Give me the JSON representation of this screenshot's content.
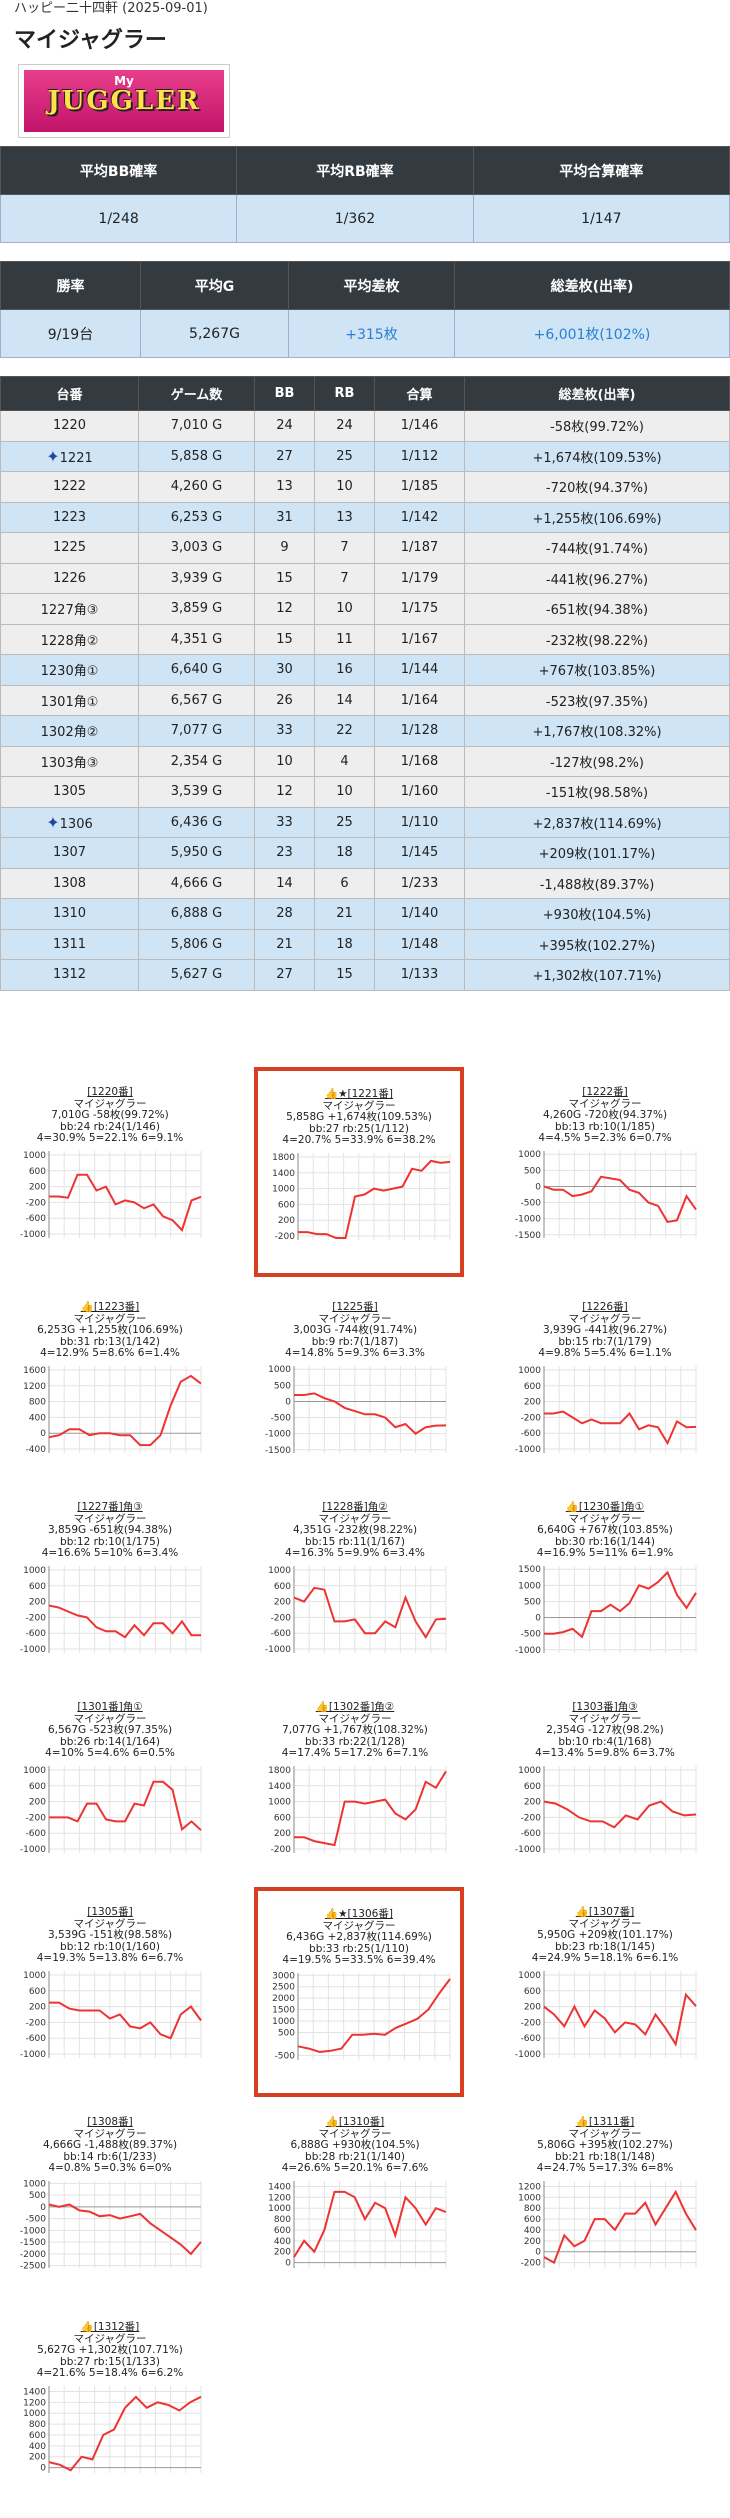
{
  "header": {
    "meta": "ハッピー二十四軒 (2025-09-01)",
    "title": "マイジャグラー",
    "logo_text": "JUGGLER",
    "logo_sub": "My"
  },
  "summary1": {
    "headers": [
      "平均BB確率",
      "平均RB確率",
      "平均合算確率"
    ],
    "values": [
      "1/248",
      "1/362",
      "1/147"
    ]
  },
  "summary2": {
    "headers": [
      "勝率",
      "平均G",
      "平均差枚",
      "総差枚(出率)"
    ],
    "values": [
      "9/19台",
      "5,267G",
      "+315枚",
      "+6,001枚(102%)"
    ]
  },
  "machines_table": {
    "headers": [
      "台番",
      "ゲーム数",
      "BB",
      "RB",
      "合算",
      "総差枚(出率)"
    ],
    "rows": [
      {
        "no": "1220",
        "g": "7,010 G",
        "bb": "24",
        "rb": "24",
        "total": "1/146",
        "diff": "-58枚(99.72%)",
        "win": false,
        "star": false
      },
      {
        "no": "1221",
        "g": "5,858 G",
        "bb": "27",
        "rb": "25",
        "total": "1/112",
        "diff": "+1,674枚(109.53%)",
        "win": true,
        "star": true
      },
      {
        "no": "1222",
        "g": "4,260 G",
        "bb": "13",
        "rb": "10",
        "total": "1/185",
        "diff": "-720枚(94.37%)",
        "win": false,
        "star": false
      },
      {
        "no": "1223",
        "g": "6,253 G",
        "bb": "31",
        "rb": "13",
        "total": "1/142",
        "diff": "+1,255枚(106.69%)",
        "win": true,
        "star": false
      },
      {
        "no": "1225",
        "g": "3,003 G",
        "bb": "9",
        "rb": "7",
        "total": "1/187",
        "diff": "-744枚(91.74%)",
        "win": false,
        "star": false
      },
      {
        "no": "1226",
        "g": "3,939 G",
        "bb": "15",
        "rb": "7",
        "total": "1/179",
        "diff": "-441枚(96.27%)",
        "win": false,
        "star": false
      },
      {
        "no": "1227角③",
        "g": "3,859 G",
        "bb": "12",
        "rb": "10",
        "total": "1/175",
        "diff": "-651枚(94.38%)",
        "win": false,
        "star": false
      },
      {
        "no": "1228角②",
        "g": "4,351 G",
        "bb": "15",
        "rb": "11",
        "total": "1/167",
        "diff": "-232枚(98.22%)",
        "win": false,
        "star": false
      },
      {
        "no": "1230角①",
        "g": "6,640 G",
        "bb": "30",
        "rb": "16",
        "total": "1/144",
        "diff": "+767枚(103.85%)",
        "win": true,
        "star": false
      },
      {
        "no": "1301角①",
        "g": "6,567 G",
        "bb": "26",
        "rb": "14",
        "total": "1/164",
        "diff": "-523枚(97.35%)",
        "win": false,
        "star": false
      },
      {
        "no": "1302角②",
        "g": "7,077 G",
        "bb": "33",
        "rb": "22",
        "total": "1/128",
        "diff": "+1,767枚(108.32%)",
        "win": true,
        "star": false
      },
      {
        "no": "1303角③",
        "g": "2,354 G",
        "bb": "10",
        "rb": "4",
        "total": "1/168",
        "diff": "-127枚(98.2%)",
        "win": false,
        "star": false
      },
      {
        "no": "1305",
        "g": "3,539 G",
        "bb": "12",
        "rb": "10",
        "total": "1/160",
        "diff": "-151枚(98.58%)",
        "win": false,
        "star": false
      },
      {
        "no": "1306",
        "g": "6,436 G",
        "bb": "33",
        "rb": "25",
        "total": "1/110",
        "diff": "+2,837枚(114.69%)",
        "win": true,
        "star": true
      },
      {
        "no": "1307",
        "g": "5,950 G",
        "bb": "23",
        "rb": "18",
        "total": "1/145",
        "diff": "+209枚(101.17%)",
        "win": true,
        "star": false
      },
      {
        "no": "1308",
        "g": "4,666 G",
        "bb": "14",
        "rb": "6",
        "total": "1/233",
        "diff": "-1,488枚(89.37%)",
        "win": false,
        "star": false
      },
      {
        "no": "1310",
        "g": "6,888 G",
        "bb": "28",
        "rb": "21",
        "total": "1/140",
        "diff": "+930枚(104.5%)",
        "win": true,
        "star": false
      },
      {
        "no": "1311",
        "g": "5,806 G",
        "bb": "21",
        "rb": "18",
        "total": "1/148",
        "diff": "+395枚(102.27%)",
        "win": true,
        "star": false
      },
      {
        "no": "1312",
        "g": "5,627 G",
        "bb": "27",
        "rb": "15",
        "total": "1/133",
        "diff": "+1,302枚(107.71%)",
        "win": true,
        "star": false
      }
    ]
  },
  "cards": [
    {
      "title": "[1220番]",
      "machine": "マイジャグラー",
      "l1": "7,010G -58枚(99.72%)",
      "l2": "bb:24 rb:24(1/146)",
      "l3": "4=30.9% 5=22.1% 6=9.1%",
      "highlight": false,
      "yticks": [
        "1000",
        "600",
        "200",
        "-200",
        "-600",
        "-1000"
      ],
      "ymin": -1100,
      "ymax": 1100
    },
    {
      "title": "👍★[1221番]",
      "machine": "マイジャグラー",
      "l1": "5,858G +1,674枚(109.53%)",
      "l2": "bb:27 rb:25(1/112)",
      "l3": "4=20.7% 5=33.9% 6=38.2%",
      "highlight": true,
      "yticks": [
        "1800",
        "1400",
        "1000",
        "600",
        "200",
        "-200"
      ],
      "ymin": -300,
      "ymax": 1900
    },
    {
      "title": "[1222番]",
      "machine": "マイジャグラー",
      "l1": "4,260G -720枚(94.37%)",
      "l2": "bb:13 rb:10(1/185)",
      "l3": "4=4.5% 5=2.3% 6=0.7%",
      "highlight": false,
      "yticks": [
        "1000",
        "500",
        "0",
        "-500",
        "-1000",
        "-1500"
      ],
      "ymin": -1600,
      "ymax": 1100
    },
    {
      "title": "👍[1223番]",
      "machine": "マイジャグラー",
      "l1": "6,253G +1,255枚(106.69%)",
      "l2": "bb:31 rb:13(1/142)",
      "l3": "4=12.9% 5=8.6% 6=1.4%",
      "highlight": false,
      "yticks": [
        "1600",
        "1200",
        "800",
        "400",
        "0",
        "-400"
      ],
      "ymin": -500,
      "ymax": 1700
    },
    {
      "title": "[1225番]",
      "machine": "マイジャグラー",
      "l1": "3,003G -744枚(91.74%)",
      "l2": "bb:9 rb:7(1/187)",
      "l3": "4=14.8% 5=9.3% 6=3.3%",
      "highlight": false,
      "yticks": [
        "1000",
        "500",
        "0",
        "-500",
        "-1000",
        "-1500"
      ],
      "ymin": -1600,
      "ymax": 1100
    },
    {
      "title": "[1226番]",
      "machine": "マイジャグラー",
      "l1": "3,939G -441枚(96.27%)",
      "l2": "bb:15 rb:7(1/179)",
      "l3": "4=9.8% 5=5.4% 6=1.1%",
      "highlight": false,
      "yticks": [
        "1000",
        "600",
        "200",
        "-200",
        "-600",
        "-1000"
      ],
      "ymin": -1100,
      "ymax": 1100
    },
    {
      "title": "[1227番]角③",
      "machine": "マイジャグラー",
      "l1": "3,859G -651枚(94.38%)",
      "l2": "bb:12 rb:10(1/175)",
      "l3": "4=16.6% 5=10% 6=3.4%",
      "highlight": false,
      "yticks": [
        "1000",
        "600",
        "200",
        "-200",
        "-600",
        "-1000"
      ],
      "ymin": -1100,
      "ymax": 1100
    },
    {
      "title": "[1228番]角②",
      "machine": "マイジャグラー",
      "l1": "4,351G -232枚(98.22%)",
      "l2": "bb:15 rb:11(1/167)",
      "l3": "4=16.3% 5=9.9% 6=3.4%",
      "highlight": false,
      "yticks": [
        "1000",
        "600",
        "200",
        "-200",
        "-600",
        "-1000"
      ],
      "ymin": -1100,
      "ymax": 1100
    },
    {
      "title": "👍[1230番]角①",
      "machine": "マイジャグラー",
      "l1": "6,640G +767枚(103.85%)",
      "l2": "bb:30 rb:16(1/144)",
      "l3": "4=16.9% 5=11% 6=1.9%",
      "highlight": false,
      "yticks": [
        "1500",
        "1000",
        "500",
        "0",
        "-500",
        "-1000"
      ],
      "ymin": -1100,
      "ymax": 1600
    },
    {
      "title": "[1301番]角①",
      "machine": "マイジャグラー",
      "l1": "6,567G -523枚(97.35%)",
      "l2": "bb:26 rb:14(1/164)",
      "l3": "4=10% 5=4.6% 6=0.5%",
      "highlight": false,
      "yticks": [
        "1000",
        "600",
        "200",
        "-200",
        "-600",
        "-1000"
      ],
      "ymin": -1100,
      "ymax": 1100
    },
    {
      "title": "👍[1302番]角②",
      "machine": "マイジャグラー",
      "l1": "7,077G +1,767枚(108.32%)",
      "l2": "bb:33 rb:22(1/128)",
      "l3": "4=17.4% 5=17.2% 6=7.1%",
      "highlight": false,
      "yticks": [
        "1800",
        "1400",
        "1000",
        "600",
        "200",
        "-200"
      ],
      "ymin": -300,
      "ymax": 1900
    },
    {
      "title": "[1303番]角③",
      "machine": "マイジャグラー",
      "l1": "2,354G -127枚(98.2%)",
      "l2": "bb:10 rb:4(1/168)",
      "l3": "4=13.4% 5=9.8% 6=3.7%",
      "highlight": false,
      "yticks": [
        "1000",
        "600",
        "200",
        "-200",
        "-600",
        "-1000"
      ],
      "ymin": -1100,
      "ymax": 1100
    },
    {
      "title": "[1305番]",
      "machine": "マイジャグラー",
      "l1": "3,539G -151枚(98.58%)",
      "l2": "bb:12 rb:10(1/160)",
      "l3": "4=19.3% 5=13.8% 6=6.7%",
      "highlight": false,
      "yticks": [
        "1000",
        "600",
        "200",
        "-200",
        "-600",
        "-1000"
      ],
      "ymin": -1100,
      "ymax": 1100
    },
    {
      "title": "👍★[1306番]",
      "machine": "マイジャグラー",
      "l1": "6,436G +2,837枚(114.69%)",
      "l2": "bb:33 rb:25(1/110)",
      "l3": "4=19.5% 5=33.5% 6=39.4%",
      "highlight": true,
      "yticks": [
        "3000",
        "2500",
        "2000",
        "1500",
        "1000",
        "500",
        "-500"
      ],
      "ymin": -700,
      "ymax": 3100
    },
    {
      "title": "👍[1307番]",
      "machine": "マイジャグラー",
      "l1": "5,950G +209枚(101.17%)",
      "l2": "bb:23 rb:18(1/145)",
      "l3": "4=24.9% 5=18.1% 6=6.1%",
      "highlight": false,
      "yticks": [
        "1000",
        "600",
        "200",
        "-200",
        "-600",
        "-1000"
      ],
      "ymin": -1100,
      "ymax": 1100
    },
    {
      "title": "[1308番]",
      "machine": "マイジャグラー",
      "l1": "4,666G -1,488枚(89.37%)",
      "l2": "bb:14 rb:6(1/233)",
      "l3": "4=0.8% 5=0.3% 6=0%",
      "highlight": false,
      "yticks": [
        "1000",
        "500",
        "0",
        "-500",
        "-1000",
        "-1500",
        "-2000",
        "-2500"
      ],
      "ymin": -2600,
      "ymax": 1100
    },
    {
      "title": "👍[1310番]",
      "machine": "マイジャグラー",
      "l1": "6,888G +930枚(104.5%)",
      "l2": "bb:28 rb:21(1/140)",
      "l3": "4=26.6% 5=20.1% 6=7.6%",
      "highlight": false,
      "yticks": [
        "1400",
        "1200",
        "1000",
        "800",
        "600",
        "400",
        "200",
        "0"
      ],
      "ymin": -100,
      "ymax": 1500
    },
    {
      "title": "👍[1311番]",
      "machine": "マイジャグラー",
      "l1": "5,806G +395枚(102.27%)",
      "l2": "bb:21 rb:18(1/148)",
      "l3": "4=24.7% 5=17.3% 6=8%",
      "highlight": false,
      "yticks": [
        "1200",
        "1000",
        "800",
        "600",
        "400",
        "200",
        "0",
        "-200"
      ],
      "ymin": -300,
      "ymax": 1300
    },
    {
      "title": "👍[1312番]",
      "machine": "マイジャグラー",
      "l1": "5,627G +1,302枚(107.71%)",
      "l2": "bb:27 rb:15(1/133)",
      "l3": "4=21.6% 5=18.4% 6=6.2%",
      "highlight": false,
      "yticks": [
        "1400",
        "1200",
        "1000",
        "800",
        "600",
        "400",
        "200",
        "0"
      ],
      "ymin": -100,
      "ymax": 1500
    }
  ],
  "chart_data": [
    {
      "type": "line",
      "title": "[1220番]",
      "y": [
        -50,
        -50,
        -80,
        500,
        500,
        100,
        200,
        -250,
        -150,
        -200,
        -350,
        -250,
        -550,
        -650,
        -900,
        -150,
        -58
      ]
    },
    {
      "type": "line",
      "title": "[1221番]",
      "y": [
        -100,
        -100,
        -150,
        -150,
        -250,
        -250,
        800,
        850,
        1000,
        950,
        1000,
        1050,
        1500,
        1450,
        1700,
        1650,
        1674
      ]
    },
    {
      "type": "line",
      "title": "[1222番]",
      "y": [
        0,
        -100,
        -100,
        -300,
        -250,
        -150,
        300,
        250,
        200,
        -100,
        -200,
        -500,
        -600,
        -1100,
        -1050,
        -300,
        -720
      ]
    },
    {
      "type": "line",
      "title": "[1223番]",
      "y": [
        -100,
        -50,
        100,
        100,
        -50,
        0,
        0,
        -50,
        -50,
        -300,
        -300,
        -50,
        700,
        1300,
        1450,
        1255
      ]
    },
    {
      "type": "line",
      "title": "[1225番]",
      "y": [
        200,
        200,
        250,
        100,
        0,
        -200,
        -300,
        -400,
        -400,
        -500,
        -800,
        -700,
        -1000,
        -800,
        -750,
        -744
      ]
    },
    {
      "type": "line",
      "title": "[1226番]",
      "y": [
        -100,
        -100,
        -50,
        -200,
        -350,
        -250,
        -350,
        -350,
        -350,
        -100,
        -500,
        -400,
        -450,
        -850,
        -300,
        -450,
        -441
      ]
    },
    {
      "type": "line",
      "title": "[1227番]角③",
      "y": [
        100,
        50,
        -50,
        -150,
        -200,
        -450,
        -550,
        -550,
        -700,
        -400,
        -650,
        -350,
        -350,
        -600,
        -300,
        -650,
        -651
      ]
    },
    {
      "type": "line",
      "title": "[1228番]角②",
      "y": [
        300,
        200,
        550,
        500,
        -300,
        -300,
        -250,
        -600,
        -600,
        -300,
        -450,
        300,
        -300,
        -700,
        -250,
        -232
      ]
    },
    {
      "type": "line",
      "title": "[1230番]角①",
      "y": [
        -500,
        -500,
        -450,
        -350,
        -600,
        200,
        200,
        400,
        200,
        450,
        1000,
        900,
        1100,
        1400,
        700,
        300,
        767
      ]
    },
    {
      "type": "line",
      "title": "[1301番]角①",
      "y": [
        -200,
        -200,
        -200,
        -300,
        150,
        150,
        -250,
        -300,
        -300,
        150,
        100,
        700,
        700,
        500,
        -500,
        -300,
        -523
      ]
    },
    {
      "type": "line",
      "title": "[1302番]角②",
      "y": [
        100,
        100,
        0,
        -50,
        -100,
        1000,
        1000,
        950,
        1000,
        1050,
        700,
        550,
        800,
        1500,
        1350,
        1767
      ]
    },
    {
      "type": "line",
      "title": "[1303番]角③",
      "y": [
        200,
        150,
        0,
        -200,
        -300,
        -300,
        -450,
        -150,
        -250,
        100,
        200,
        -50,
        -150,
        -127
      ]
    },
    {
      "type": "line",
      "title": "[1305番]",
      "y": [
        300,
        300,
        150,
        100,
        100,
        100,
        -100,
        0,
        -300,
        -350,
        -200,
        -500,
        -600,
        0,
        200,
        -151
      ]
    },
    {
      "type": "line",
      "title": "[1306番]",
      "y": [
        -100,
        -200,
        -350,
        -300,
        -200,
        400,
        400,
        450,
        400,
        700,
        900,
        1100,
        1500,
        2200,
        2837
      ]
    },
    {
      "type": "line",
      "title": "[1307番]",
      "y": [
        200,
        0,
        -300,
        200,
        -300,
        100,
        -100,
        -450,
        -200,
        -250,
        -500,
        0,
        -350,
        -750,
        500,
        209
      ]
    },
    {
      "type": "line",
      "title": "[1308番]",
      "y": [
        100,
        0,
        100,
        -150,
        -200,
        -400,
        -350,
        -500,
        -400,
        -300,
        -700,
        -1000,
        -1300,
        -1600,
        -2000,
        -1488
      ]
    },
    {
      "type": "line",
      "title": "[1310番]",
      "y": [
        100,
        400,
        200,
        600,
        1300,
        1300,
        1200,
        800,
        1100,
        1000,
        500,
        1200,
        1000,
        700,
        1000,
        930
      ]
    },
    {
      "type": "line",
      "title": "[1311番]",
      "y": [
        -100,
        -200,
        300,
        100,
        200,
        600,
        600,
        400,
        700,
        700,
        900,
        500,
        800,
        1100,
        700,
        395
      ]
    },
    {
      "type": "line",
      "title": "[1312番]",
      "y": [
        100,
        50,
        -50,
        200,
        150,
        600,
        700,
        1100,
        1300,
        1100,
        1200,
        1150,
        1050,
        1200,
        1302
      ]
    }
  ]
}
